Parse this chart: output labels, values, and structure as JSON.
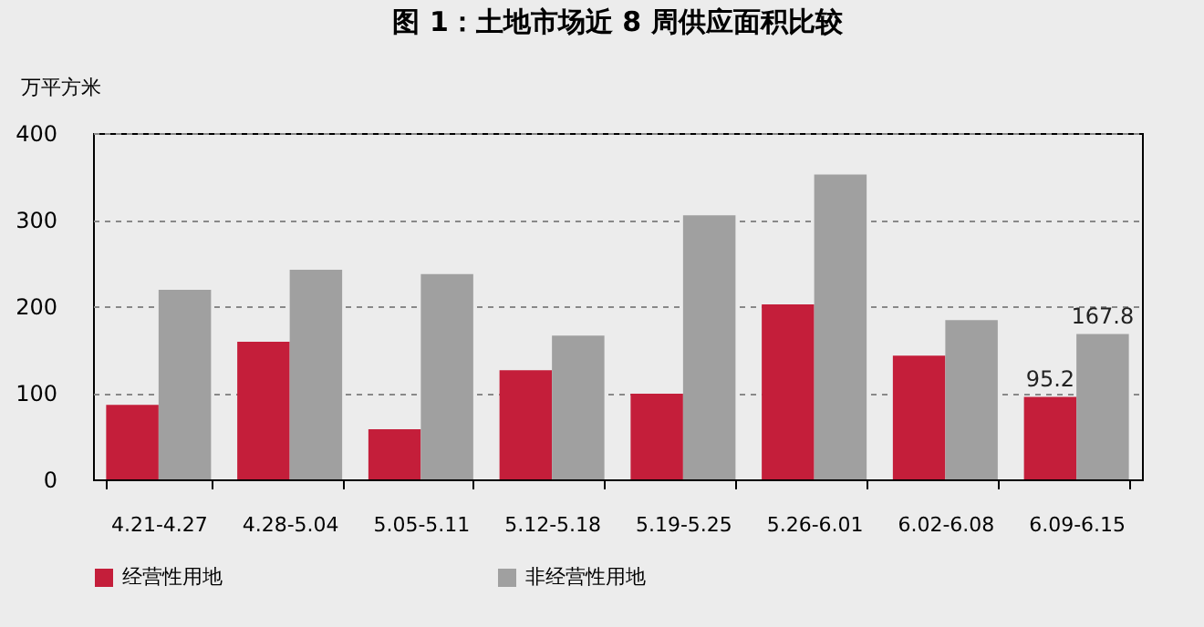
{
  "chart_data": {
    "type": "bar",
    "title": "图 1：土地市场近 8 周供应面积比较",
    "ylabel": "万平方米",
    "categories": [
      "4.21-4.27",
      "4.28-5.04",
      "5.05-5.11",
      "5.12-5.18",
      "5.19-5.25",
      "5.26-6.01",
      "6.02-6.08",
      "6.09-6.15"
    ],
    "series": [
      {
        "name": "经营性用地",
        "color": "#c41e3a",
        "values": [
          86,
          159,
          58,
          126,
          99,
          202,
          143,
          95.2
        ],
        "value_labels": [
          null,
          null,
          null,
          null,
          null,
          null,
          null,
          "95.2"
        ]
      },
      {
        "name": "非经营性用地",
        "color": "#a0a0a0",
        "values": [
          219,
          242,
          237,
          166,
          305,
          352,
          184,
          167.8
        ],
        "value_labels": [
          null,
          null,
          null,
          null,
          null,
          null,
          null,
          "167.8"
        ]
      }
    ],
    "ylim": [
      0,
      400
    ],
    "yticks": [
      0,
      100,
      200,
      300,
      400
    ],
    "grid": "y",
    "legend": "bottom"
  }
}
